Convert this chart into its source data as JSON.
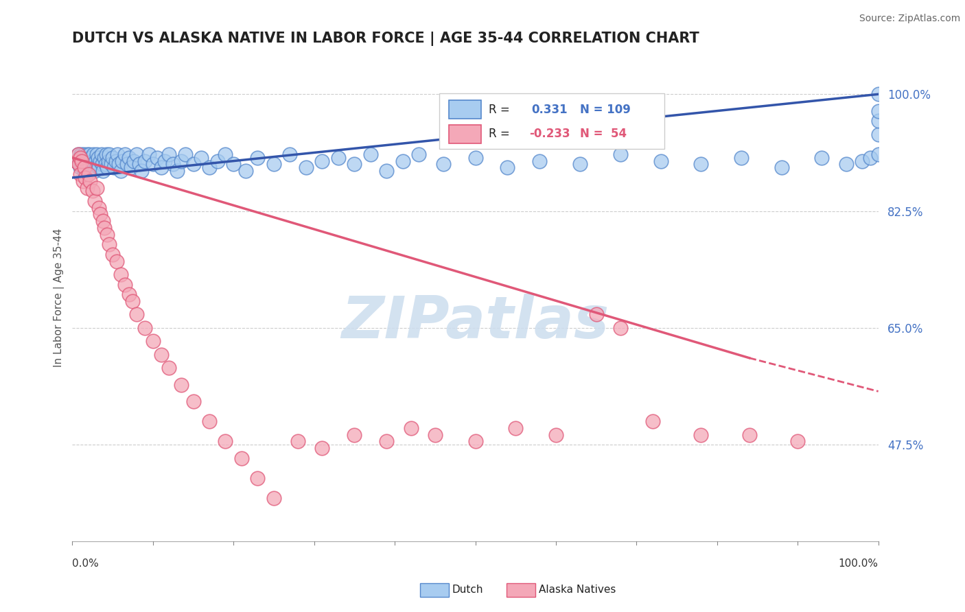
{
  "title": "DUTCH VS ALASKA NATIVE IN LABOR FORCE | AGE 35-44 CORRELATION CHART",
  "source": "Source: ZipAtlas.com",
  "ylabel": "In Labor Force | Age 35-44",
  "yticks": [
    0.475,
    0.65,
    0.825,
    1.0
  ],
  "ytick_labels": [
    "47.5%",
    "65.0%",
    "82.5%",
    "100.0%"
  ],
  "xmin": 0.0,
  "xmax": 1.0,
  "ymin": 0.33,
  "ymax": 1.06,
  "dutch_R": 0.331,
  "dutch_N": 109,
  "alaska_R": -0.233,
  "alaska_N": 54,
  "dutch_color": "#A8CCF0",
  "alaska_color": "#F4A8B8",
  "dutch_edge_color": "#5588CC",
  "alaska_edge_color": "#E05878",
  "dutch_line_color": "#3355AA",
  "alaska_line_color": "#E05878",
  "tick_color": "#4472C4",
  "legend_border_color": "#CCCCCC",
  "grid_color": "#CCCCCC",
  "watermark_color": "#CCDDEE",
  "background_color": "#FFFFFF",
  "dutch_scatter_x": [
    0.005,
    0.007,
    0.008,
    0.009,
    0.01,
    0.01,
    0.011,
    0.012,
    0.012,
    0.013,
    0.013,
    0.014,
    0.015,
    0.015,
    0.016,
    0.016,
    0.017,
    0.018,
    0.018,
    0.019,
    0.02,
    0.02,
    0.021,
    0.022,
    0.023,
    0.024,
    0.025,
    0.026,
    0.027,
    0.028,
    0.029,
    0.03,
    0.031,
    0.032,
    0.033,
    0.035,
    0.036,
    0.037,
    0.038,
    0.04,
    0.041,
    0.042,
    0.043,
    0.045,
    0.046,
    0.048,
    0.05,
    0.052,
    0.054,
    0.056,
    0.058,
    0.06,
    0.062,
    0.065,
    0.068,
    0.07,
    0.073,
    0.076,
    0.08,
    0.083,
    0.086,
    0.09,
    0.095,
    0.1,
    0.105,
    0.11,
    0.115,
    0.12,
    0.125,
    0.13,
    0.135,
    0.14,
    0.15,
    0.16,
    0.17,
    0.18,
    0.19,
    0.2,
    0.215,
    0.23,
    0.25,
    0.27,
    0.29,
    0.31,
    0.33,
    0.35,
    0.37,
    0.39,
    0.41,
    0.43,
    0.46,
    0.5,
    0.54,
    0.58,
    0.63,
    0.68,
    0.73,
    0.78,
    0.83,
    0.88,
    0.93,
    0.96,
    0.98,
    0.99,
    1.0,
    1.0,
    1.0,
    1.0,
    1.0
  ],
  "dutch_scatter_y": [
    0.9,
    0.91,
    0.895,
    0.905,
    0.9,
    0.89,
    0.91,
    0.895,
    0.905,
    0.89,
    0.9,
    0.91,
    0.895,
    0.885,
    0.905,
    0.895,
    0.9,
    0.89,
    0.91,
    0.895,
    0.9,
    0.885,
    0.91,
    0.895,
    0.905,
    0.89,
    0.9,
    0.91,
    0.895,
    0.885,
    0.9,
    0.91,
    0.895,
    0.905,
    0.89,
    0.9,
    0.91,
    0.895,
    0.885,
    0.905,
    0.895,
    0.91,
    0.89,
    0.9,
    0.91,
    0.895,
    0.905,
    0.89,
    0.9,
    0.91,
    0.895,
    0.885,
    0.9,
    0.91,
    0.895,
    0.905,
    0.89,
    0.9,
    0.91,
    0.895,
    0.885,
    0.9,
    0.91,
    0.895,
    0.905,
    0.89,
    0.9,
    0.91,
    0.895,
    0.885,
    0.9,
    0.91,
    0.895,
    0.905,
    0.89,
    0.9,
    0.91,
    0.895,
    0.885,
    0.905,
    0.895,
    0.91,
    0.89,
    0.9,
    0.905,
    0.895,
    0.91,
    0.885,
    0.9,
    0.91,
    0.895,
    0.905,
    0.89,
    0.9,
    0.895,
    0.91,
    0.9,
    0.895,
    0.905,
    0.89,
    0.905,
    0.895,
    0.9,
    0.905,
    0.91,
    0.94,
    0.96,
    0.975,
    1.0
  ],
  "alaska_scatter_x": [
    0.005,
    0.007,
    0.008,
    0.01,
    0.01,
    0.012,
    0.013,
    0.015,
    0.016,
    0.018,
    0.02,
    0.022,
    0.025,
    0.028,
    0.03,
    0.033,
    0.035,
    0.038,
    0.04,
    0.043,
    0.046,
    0.05,
    0.055,
    0.06,
    0.065,
    0.07,
    0.075,
    0.08,
    0.09,
    0.1,
    0.11,
    0.12,
    0.135,
    0.15,
    0.17,
    0.19,
    0.21,
    0.23,
    0.25,
    0.28,
    0.31,
    0.35,
    0.39,
    0.42,
    0.45,
    0.5,
    0.55,
    0.6,
    0.65,
    0.68,
    0.72,
    0.78,
    0.84,
    0.9
  ],
  "alaska_scatter_y": [
    0.9,
    0.91,
    0.895,
    0.905,
    0.88,
    0.9,
    0.87,
    0.89,
    0.875,
    0.86,
    0.88,
    0.87,
    0.855,
    0.84,
    0.86,
    0.83,
    0.82,
    0.81,
    0.8,
    0.79,
    0.775,
    0.76,
    0.75,
    0.73,
    0.715,
    0.7,
    0.69,
    0.67,
    0.65,
    0.63,
    0.61,
    0.59,
    0.565,
    0.54,
    0.51,
    0.48,
    0.455,
    0.425,
    0.395,
    0.48,
    0.47,
    0.49,
    0.48,
    0.5,
    0.49,
    0.48,
    0.5,
    0.49,
    0.67,
    0.65,
    0.51,
    0.49,
    0.49,
    0.48
  ]
}
